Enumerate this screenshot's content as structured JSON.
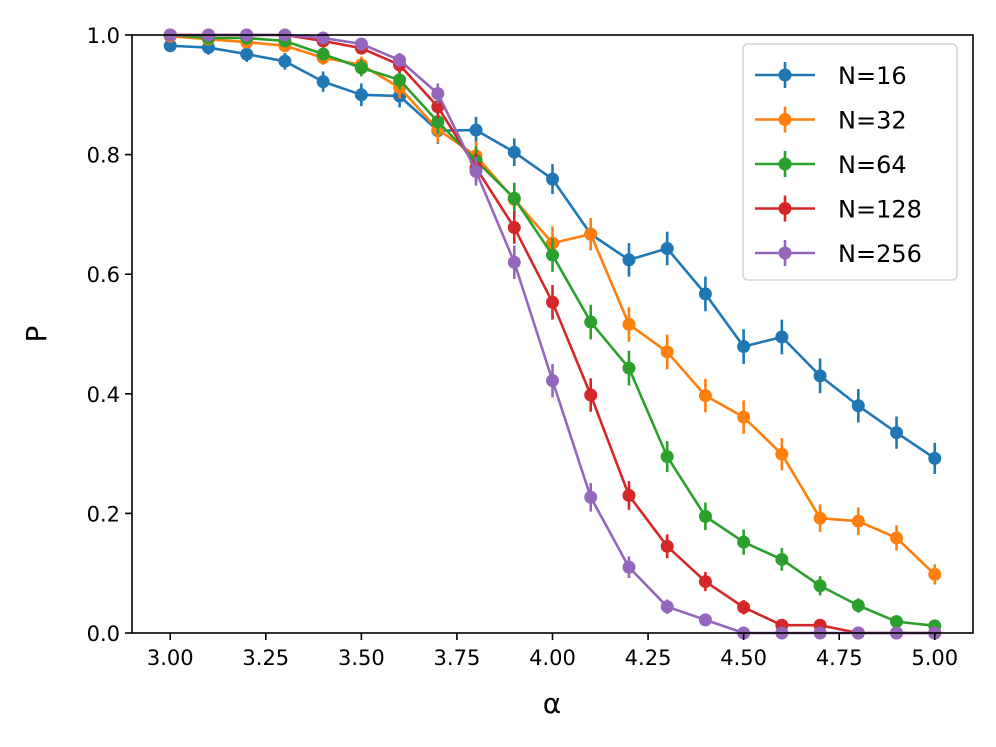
{
  "chart_data": {
    "type": "line",
    "title": "",
    "xlabel": "α",
    "ylabel": "P",
    "xlim": [
      2.9,
      5.1
    ],
    "ylim": [
      0.0,
      1.0
    ],
    "xticks": [
      "3.00",
      "3.25",
      "3.50",
      "3.75",
      "4.00",
      "4.25",
      "4.50",
      "4.75",
      "5.00"
    ],
    "yticks": [
      "0.0",
      "0.2",
      "0.4",
      "0.6",
      "0.8",
      "1.0"
    ],
    "grid": false,
    "legend_position": "top-right",
    "x": [
      3.0,
      3.1,
      3.2,
      3.3,
      3.4,
      3.5,
      3.6,
      3.7,
      3.8,
      3.9,
      4.0,
      4.1,
      4.2,
      4.3,
      4.4,
      4.5,
      4.6,
      4.7,
      4.8,
      4.9,
      5.0
    ],
    "series": [
      {
        "name": "N=16",
        "color": "#1f77b4",
        "values": [
          0.982,
          0.979,
          0.968,
          0.956,
          0.922,
          0.9,
          0.898,
          0.84,
          0.841,
          0.804,
          0.759,
          0.667,
          0.624,
          0.643,
          0.567,
          0.479,
          0.495,
          0.43,
          0.38,
          0.335,
          0.292
        ],
        "errors": [
          0.01,
          0.012,
          0.013,
          0.014,
          0.017,
          0.019,
          0.019,
          0.022,
          0.022,
          0.023,
          0.025,
          0.027,
          0.028,
          0.028,
          0.029,
          0.029,
          0.029,
          0.029,
          0.028,
          0.027,
          0.026
        ]
      },
      {
        "name": "N=32",
        "color": "#ff7f0e",
        "values": [
          0.998,
          0.993,
          0.988,
          0.982,
          0.962,
          0.95,
          0.912,
          0.842,
          0.798,
          0.725,
          0.652,
          0.667,
          0.516,
          0.47,
          0.397,
          0.361,
          0.299,
          0.192,
          0.187,
          0.159,
          0.098
        ],
        "errors": [
          0.003,
          0.006,
          0.007,
          0.008,
          0.012,
          0.014,
          0.018,
          0.022,
          0.024,
          0.026,
          0.028,
          0.027,
          0.029,
          0.029,
          0.028,
          0.028,
          0.027,
          0.023,
          0.023,
          0.021,
          0.017
        ]
      },
      {
        "name": "N=64",
        "color": "#2ca02c",
        "values": [
          1.0,
          0.995,
          0.995,
          0.99,
          0.968,
          0.945,
          0.925,
          0.855,
          0.79,
          0.727,
          0.632,
          0.52,
          0.443,
          0.295,
          0.195,
          0.152,
          0.123,
          0.079,
          0.046,
          0.019,
          0.012
        ],
        "errors": [
          0.0,
          0.005,
          0.005,
          0.006,
          0.011,
          0.014,
          0.016,
          0.021,
          0.024,
          0.026,
          0.028,
          0.029,
          0.029,
          0.026,
          0.023,
          0.021,
          0.019,
          0.016,
          0.012,
          0.008,
          0.006
        ]
      },
      {
        "name": "N=128",
        "color": "#d62728",
        "values": [
          1.0,
          1.0,
          1.0,
          1.0,
          0.99,
          0.978,
          0.95,
          0.88,
          0.778,
          0.678,
          0.553,
          0.398,
          0.23,
          0.145,
          0.086,
          0.043,
          0.013,
          0.013,
          0.0,
          0.0,
          0.0
        ],
        "errors": [
          0.0,
          0.0,
          0.0,
          0.0,
          0.006,
          0.009,
          0.013,
          0.019,
          0.024,
          0.027,
          0.029,
          0.028,
          0.024,
          0.02,
          0.016,
          0.012,
          0.007,
          0.007,
          0.0,
          0.0,
          0.0
        ]
      },
      {
        "name": "N=256",
        "color": "#9467bd",
        "values": [
          1.0,
          1.0,
          1.0,
          1.0,
          0.995,
          0.985,
          0.958,
          0.902,
          0.772,
          0.62,
          0.422,
          0.227,
          0.11,
          0.044,
          0.022,
          0.0,
          0.0,
          0.0,
          0.0,
          0.0,
          0.0
        ],
        "errors": [
          0.0,
          0.0,
          0.0,
          0.0,
          0.005,
          0.007,
          0.012,
          0.017,
          0.024,
          0.028,
          0.028,
          0.024,
          0.018,
          0.012,
          0.008,
          0.0,
          0.0,
          0.0,
          0.0,
          0.0,
          0.0
        ]
      }
    ]
  }
}
